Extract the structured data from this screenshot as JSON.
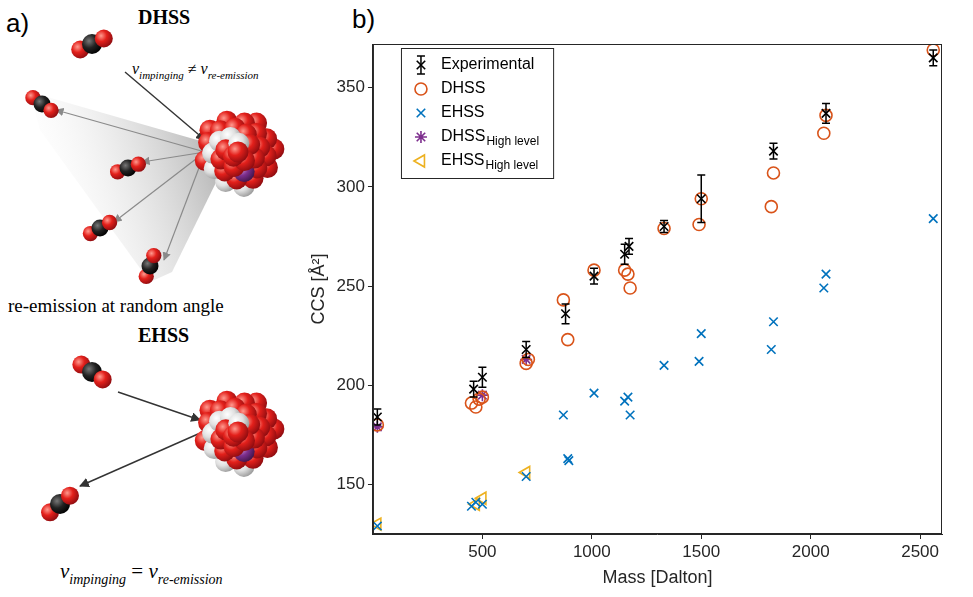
{
  "diagram": {
    "panel_label": "a)",
    "dhss": {
      "title": "DHSS",
      "relation": {
        "left": {
          "base": "v",
          "sub": "impinging"
        },
        "operator": "≠",
        "right": {
          "base": "v",
          "sub": "re-emission"
        }
      },
      "caption": "re-emission at random angle"
    },
    "ehss": {
      "title": "EHSS",
      "relation": {
        "left": {
          "base": "v",
          "sub": "impinging"
        },
        "operator": "=",
        "right": {
          "base": "v",
          "sub": "re-emission"
        }
      }
    }
  },
  "chart_data": {
    "type": "scatter",
    "panel_label": "b)",
    "x_label": "Mass [Dalton]",
    "y_label": "CCS [Å²]",
    "xlim": [
      0,
      2600
    ],
    "xticks": [
      500,
      1000,
      1500,
      2000,
      2500
    ],
    "ylim": [
      125,
      372
    ],
    "yticks": [
      150,
      200,
      250,
      300,
      350
    ],
    "grid": false,
    "legend": "upper left",
    "series": [
      {
        "name": "Experimental",
        "color": "#000000",
        "marker": "x",
        "x": [
          20,
          460,
          500,
          700,
          880,
          1010,
          1150,
          1170,
          1330,
          1500,
          1830,
          2070,
          2560
        ],
        "values": [
          184,
          198,
          204,
          218,
          236,
          255,
          266,
          270,
          280,
          294,
          318,
          337,
          365
        ],
        "errors": [
          4,
          4,
          5,
          4,
          5,
          4,
          5,
          4,
          3,
          12,
          4,
          5,
          4
        ]
      },
      {
        "name": "DHSS",
        "color": "#d95319",
        "marker": "circle",
        "x": [
          20,
          450,
          470,
          485,
          500,
          700,
          710,
          870,
          890,
          1010,
          1150,
          1165,
          1175,
          1330,
          1490,
          1500,
          1820,
          1830,
          2060,
          2070,
          2560
        ],
        "values": [
          180,
          191,
          189,
          193,
          194,
          211,
          213,
          243,
          223,
          258,
          258,
          256,
          249,
          279,
          281,
          294,
          290,
          307,
          327,
          336,
          369
        ]
      },
      {
        "name": "EHSS",
        "color": "#0072bd",
        "marker": "x",
        "x": [
          20,
          450,
          470,
          500,
          700,
          870,
          890,
          895,
          1010,
          1150,
          1165,
          1175,
          1330,
          1490,
          1500,
          1820,
          1830,
          2060,
          2070,
          2560
        ],
        "values": [
          129,
          139,
          141,
          140,
          154,
          185,
          163,
          162,
          196,
          192,
          194,
          185,
          210,
          212,
          226,
          218,
          232,
          249,
          256,
          284
        ]
      },
      {
        "name": "DHSS",
        "subscript": "High level",
        "color": "#7e2f8e",
        "marker": "star",
        "x": [
          20,
          500,
          700
        ],
        "values": [
          179,
          195,
          213
        ]
      },
      {
        "name": "EHSS",
        "subscript": "High level",
        "color": "#edb120",
        "marker": "triangle-left",
        "x": [
          20,
          470,
          500,
          700
        ],
        "values": [
          130,
          140,
          143,
          156
        ]
      }
    ]
  }
}
